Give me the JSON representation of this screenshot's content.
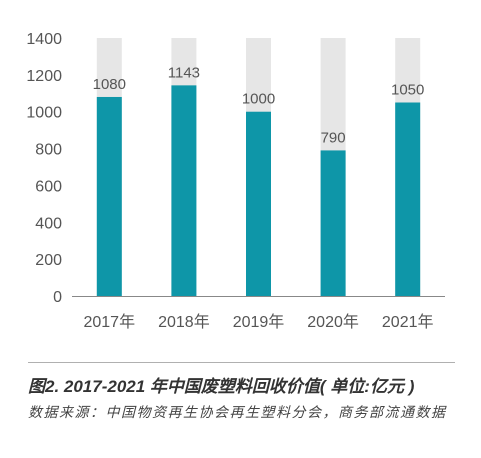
{
  "chart_data": {
    "type": "bar",
    "categories": [
      "2017年",
      "2018年",
      "2019年",
      "2020年",
      "2021年"
    ],
    "values": [
      1080,
      1143,
      1000,
      790,
      1050
    ],
    "data_labels": [
      "1080",
      "1143",
      "1000",
      "790",
      "1050"
    ],
    "ylim": [
      0,
      1400
    ],
    "yticks": [
      0,
      200,
      400,
      600,
      800,
      1000,
      1200,
      1400
    ],
    "grid": false,
    "legend": "none",
    "colors": {
      "bar": "#0e96a8",
      "background_bar": "#e6e6e6",
      "axis": "#888888"
    }
  },
  "caption": {
    "title": "图2. 2017-2021 年中国废塑料回收价值( 单位:亿元 )",
    "source": "数据来源：中国物资再生协会再生塑料分会，商务部流通数据"
  }
}
